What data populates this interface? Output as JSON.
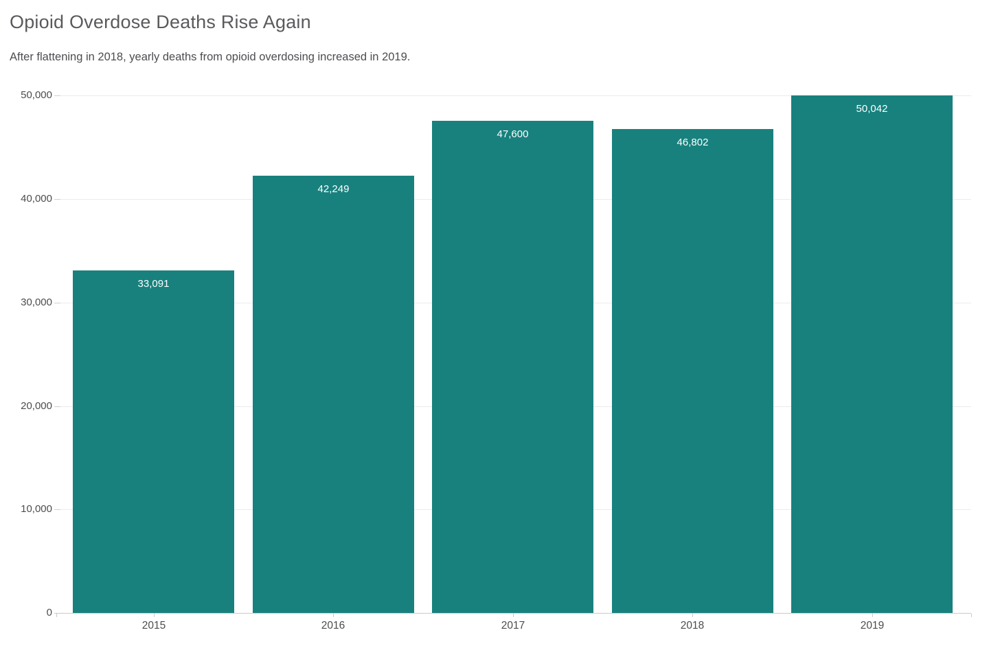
{
  "header": {
    "title": "Opioid Overdose Deaths Rise Again",
    "subtitle": "After flattening in 2018, yearly deaths from opioid overdosing increased in 2019."
  },
  "chart_data": {
    "type": "bar",
    "title": "Opioid Overdose Deaths Rise Again",
    "subtitle": "After flattening in 2018, yearly deaths from opioid overdosing increased in 2019.",
    "categories": [
      "2015",
      "2016",
      "2017",
      "2018",
      "2019"
    ],
    "values": [
      33091,
      42249,
      47600,
      46802,
      50042
    ],
    "value_labels": [
      "33,091",
      "42,249",
      "47,600",
      "46,802",
      "50,042"
    ],
    "xlabel": "",
    "ylabel": "",
    "ylim": [
      0,
      50000
    ],
    "yticks": [
      0,
      10000,
      20000,
      30000,
      40000,
      50000
    ],
    "ytick_labels": [
      "0",
      "10,000",
      "20,000",
      "30,000",
      "40,000",
      "50,000"
    ],
    "grid": true,
    "legend": false
  },
  "colors": {
    "bar": "#18817e",
    "bar_label": "#ffffff",
    "gridline": "#ebebeb",
    "axis_line": "#c9c9c9",
    "tick_label": "#4b4c4e",
    "title": "#595a5e",
    "subtitle": "#4c4d51",
    "background": "#ffffff"
  }
}
